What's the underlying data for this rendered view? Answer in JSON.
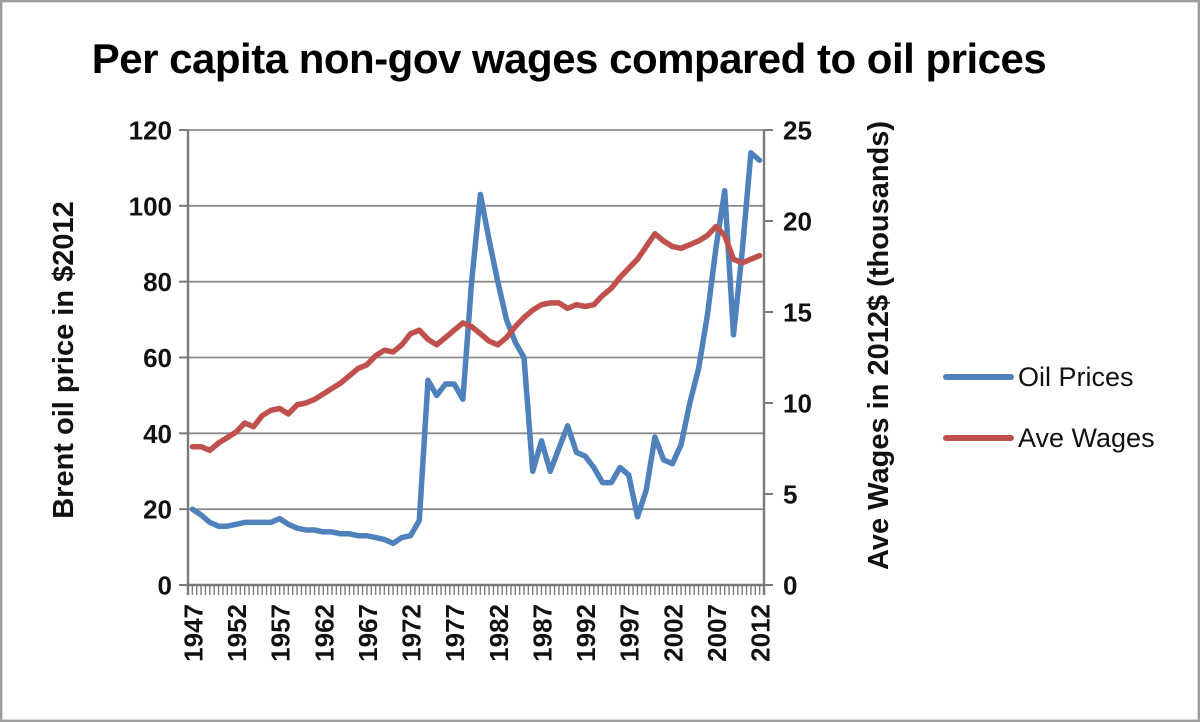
{
  "chart_data": {
    "type": "line",
    "title": "Per capita non-gov wages compared to oil prices",
    "grid": "horizontal",
    "x": [
      1947,
      1948,
      1949,
      1950,
      1951,
      1952,
      1953,
      1954,
      1955,
      1956,
      1957,
      1958,
      1959,
      1960,
      1961,
      1962,
      1963,
      1964,
      1965,
      1966,
      1967,
      1968,
      1969,
      1970,
      1971,
      1972,
      1973,
      1974,
      1975,
      1976,
      1977,
      1978,
      1979,
      1980,
      1981,
      1982,
      1983,
      1984,
      1985,
      1986,
      1987,
      1988,
      1989,
      1990,
      1991,
      1992,
      1993,
      1994,
      1995,
      1996,
      1997,
      1998,
      1999,
      2000,
      2001,
      2002,
      2003,
      2004,
      2005,
      2006,
      2007,
      2008,
      2009,
      2010,
      2011,
      2012
    ],
    "x_tick_interval": 5,
    "x_tick_labels": [
      "1947",
      "1952",
      "1957",
      "1962",
      "1967",
      "1972",
      "1977",
      "1982",
      "1987",
      "1992",
      "1997",
      "2002",
      "2007",
      "2012"
    ],
    "left_axis": {
      "label": "Brent oil price in $2012",
      "min": 0,
      "max": 120,
      "tick_interval": 20,
      "tick_labels": [
        "0",
        "20",
        "40",
        "60",
        "80",
        "100",
        "120"
      ]
    },
    "right_axis": {
      "label": "Ave Wages in 2012$ (thousands)",
      "min": 0,
      "max": 25,
      "tick_interval": 5,
      "tick_labels": [
        "0",
        "5",
        "10",
        "15",
        "20",
        "25"
      ]
    },
    "series": [
      {
        "name": "Oil Prices",
        "axis": "left",
        "color": "#4F81BD",
        "values": [
          20,
          18.5,
          16.5,
          15.5,
          15.5,
          16,
          16.5,
          16.5,
          16.5,
          16.5,
          17.5,
          16,
          15,
          14.5,
          14.5,
          14,
          14,
          13.5,
          13.5,
          13,
          13,
          12.5,
          12,
          11,
          12.5,
          13,
          17,
          54,
          50,
          53,
          53,
          49,
          80,
          103,
          91,
          80,
          70,
          64,
          60,
          30,
          38,
          30,
          36,
          42,
          35,
          34,
          31,
          27,
          27,
          31,
          29,
          18,
          25,
          39,
          33,
          32,
          37,
          48,
          57,
          71,
          89,
          104,
          66,
          88,
          114,
          112
        ]
      },
      {
        "name": "Ave Wages",
        "axis": "right",
        "color": "#C0504D",
        "values": [
          7.6,
          7.6,
          7.4,
          7.8,
          8.1,
          8.4,
          8.9,
          8.7,
          9.3,
          9.6,
          9.7,
          9.4,
          9.9,
          10.0,
          10.2,
          10.5,
          10.8,
          11.1,
          11.5,
          11.9,
          12.1,
          12.6,
          12.9,
          12.8,
          13.2,
          13.8,
          14.0,
          13.5,
          13.2,
          13.6,
          14.0,
          14.4,
          14.2,
          13.8,
          13.4,
          13.2,
          13.6,
          14.2,
          14.7,
          15.1,
          15.4,
          15.5,
          15.5,
          15.2,
          15.4,
          15.3,
          15.4,
          15.9,
          16.3,
          16.9,
          17.4,
          17.9,
          18.6,
          19.3,
          18.9,
          18.6,
          18.5,
          18.7,
          18.9,
          19.2,
          19.7,
          19.2,
          17.9,
          17.7,
          17.9,
          18.1
        ]
      }
    ],
    "legend": {
      "position": "middle-right",
      "entries": [
        "Oil Prices",
        "Ave Wages"
      ]
    },
    "colors": {
      "gridline": "#8C8C8C",
      "axis": "#7A7A7A",
      "text": "#111111",
      "border": "#9D9D9D"
    }
  }
}
